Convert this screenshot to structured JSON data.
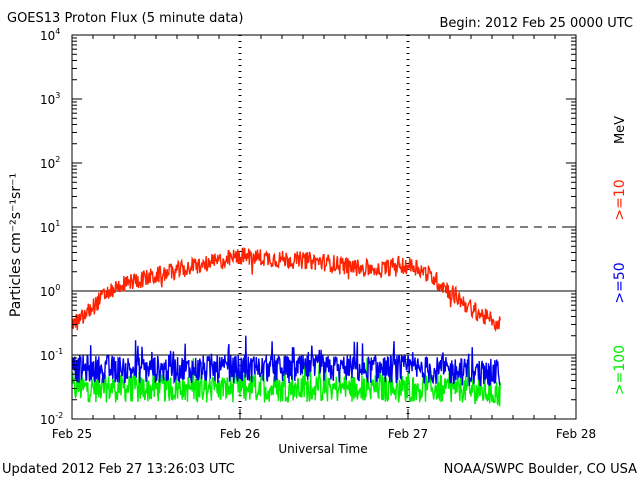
{
  "chart_data": {
    "type": "line",
    "title": "GOES13 Proton Flux (5 minute data)",
    "begin_label": "Begin: 2012 Feb 25 0000 UTC",
    "footer_left": "Updated 2012 Feb 27 13:26:03 UTC",
    "footer_right": "NOAA/SWPC Boulder, CO USA",
    "xlabel": "Universal Time",
    "ylabel": "Particles cm⁻²s⁻¹sr⁻¹",
    "unit_label": "MeV",
    "y_scale": "log",
    "ylim": [
      0.01,
      10000
    ],
    "y_ticks": [
      {
        "base": "10",
        "exp": "4",
        "value": 10000
      },
      {
        "base": "10",
        "exp": "3",
        "value": 1000
      },
      {
        "base": "10",
        "exp": "2",
        "value": 100
      },
      {
        "base": "10",
        "exp": "1",
        "value": 10
      },
      {
        "base": "10",
        "exp": "0",
        "value": 1
      },
      {
        "base": "10",
        "exp": "-1",
        "value": 0.1
      },
      {
        "base": "10",
        "exp": "-2",
        "value": 0.01
      }
    ],
    "x_ticks": [
      "Feb 25",
      "Feb 26",
      "Feb 27",
      "Feb 28"
    ],
    "xlim_days": [
      0,
      3
    ],
    "threshold_lines": [
      {
        "value": 10,
        "style": "dashed"
      },
      {
        "value": 1,
        "style": "solid"
      },
      {
        "value": 0.1,
        "style": "solid"
      }
    ],
    "grid": true,
    "legend_placement": "right",
    "series": [
      {
        "name": ">=10",
        "color": "#ff2200",
        "day": [
          0,
          0.05,
          0.12,
          0.2,
          0.3,
          0.45,
          0.6,
          0.75,
          0.9,
          1.0,
          1.1,
          1.25,
          1.4,
          1.55,
          1.7,
          1.85,
          1.95,
          2.05,
          2.15,
          2.25,
          2.35,
          2.45,
          2.55
        ],
        "flux": [
          0.3,
          0.35,
          0.55,
          0.9,
          1.3,
          1.6,
          2.0,
          2.5,
          3.0,
          3.5,
          3.4,
          3.1,
          3.0,
          2.7,
          2.3,
          2.2,
          2.6,
          2.4,
          1.6,
          1.0,
          0.6,
          0.4,
          0.3
        ]
      },
      {
        "name": ">=50",
        "color": "#0000ee",
        "day": [
          0,
          0.5,
          1.0,
          1.5,
          2.0,
          2.3,
          2.55
        ],
        "flux": [
          0.06,
          0.06,
          0.06,
          0.06,
          0.06,
          0.055,
          0.05
        ]
      },
      {
        "name": ">=100",
        "color": "#00ee00",
        "day": [
          0,
          0.5,
          1.0,
          1.5,
          2.0,
          2.3,
          2.55
        ],
        "flux": [
          0.03,
          0.03,
          0.03,
          0.03,
          0.03,
          0.03,
          0.025
        ]
      }
    ]
  }
}
